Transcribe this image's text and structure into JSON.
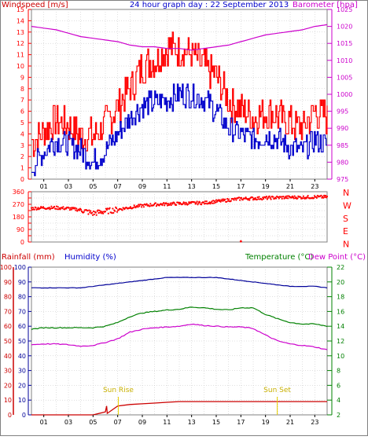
{
  "header": {
    "left": "Windspeed [m/s]",
    "center": "24 hour graph day : 22 September 2013",
    "right": "Barometer [hpa]"
  },
  "bottom_header": {
    "rainfall": "Rainfall (mm)",
    "humidity": "Humidity (%)",
    "temperature": "Temperature (°C)",
    "dewpoint": "Dew Point (°C)"
  },
  "annotations": {
    "sunrise": "Sun Rise",
    "sunset": "Sun Set"
  },
  "x_ticks": [
    "01",
    "03",
    "05",
    "07",
    "09",
    "11",
    "13",
    "15",
    "17",
    "19",
    "21",
    "23"
  ],
  "compass": [
    "N",
    "W",
    "S",
    "E",
    "N"
  ],
  "colors": {
    "wind": "#ff0000",
    "gust": "#ff0000",
    "avg": "#0000cc",
    "baro": "#cc00cc",
    "temp": "#008000",
    "dew": "#cc00cc",
    "humidity": "#000099",
    "rain": "#cc0000",
    "sun": "#e8d000",
    "grid": "#c0c0c0"
  },
  "chart_data": [
    {
      "type": "line",
      "title": "24 hour graph day : 22 September 2013",
      "ylabel": "Windspeed [m/s]",
      "y2label": "Barometer [hpa]",
      "ylim": [
        0,
        15
      ],
      "y2lim": [
        975,
        1025
      ],
      "x_hours": [
        0,
        1,
        2,
        3,
        4,
        5,
        6,
        7,
        8,
        9,
        10,
        11,
        12,
        13,
        14,
        15,
        16,
        17,
        18,
        19,
        20,
        21,
        22,
        23,
        24
      ],
      "series": [
        {
          "values": [
            3.3,
            4.2,
            5.2,
            4.8,
            3.8,
            3.8,
            4.8,
            6.5,
            8.0,
            10.0,
            10.5,
            11.5,
            11.5,
            11.0,
            10.0,
            9.0,
            7.0,
            6.0,
            5.5,
            6.0,
            5.5,
            5.0,
            4.5,
            6.0,
            5.5
          ]
        },
        {
          "values": [
            1.0,
            2.5,
            3.5,
            3.0,
            2.5,
            1.5,
            2.5,
            4.0,
            5.5,
            6.5,
            6.8,
            7.0,
            7.5,
            7.5,
            7.0,
            6.0,
            4.5,
            4.0,
            3.5,
            3.8,
            3.5,
            2.8,
            2.5,
            3.5,
            3.0
          ]
        },
        {
          "values": [
            1020,
            1019.5,
            1019,
            1018,
            1017,
            1016.5,
            1016,
            1015.5,
            1014.5,
            1014,
            1014,
            1013.5,
            1013.5,
            1013,
            1013.5,
            1014,
            1014.5,
            1015.5,
            1016.5,
            1017.5,
            1018,
            1018.5,
            1019,
            1020,
            1020.5
          ]
        }
      ]
    },
    {
      "type": "scatter",
      "ylim": [
        0,
        360
      ],
      "yticks": [
        0,
        45,
        90,
        135,
        180,
        225,
        270,
        315,
        360
      ],
      "x_hours": [
        0,
        1,
        2,
        3,
        4,
        5,
        6,
        7,
        8,
        9,
        10,
        11,
        12,
        13,
        14,
        15,
        16,
        17,
        18,
        19,
        20,
        21,
        22,
        23,
        24
      ],
      "series": [
        {
          "values": [
            240,
            245,
            245,
            240,
            230,
            205,
            220,
            232,
            248,
            260,
            268,
            272,
            275,
            278,
            280,
            290,
            300,
            310,
            312,
            315,
            318,
            320,
            320,
            322,
            322
          ]
        }
      ]
    },
    {
      "type": "line",
      "ylabel": "Rainfall (mm) / Humidity (%)",
      "y2label": "Temperature (°C) / Dew Point (°C)",
      "ylim": [
        0,
        100
      ],
      "y2lim": [
        2,
        22
      ],
      "x_hours": [
        0,
        1,
        2,
        3,
        4,
        5,
        6,
        7,
        8,
        9,
        10,
        11,
        12,
        13,
        14,
        15,
        16,
        17,
        18,
        19,
        20,
        21,
        22,
        23,
        24
      ],
      "series": [
        {
          "values": [
            86,
            86,
            86,
            86,
            86,
            87,
            88,
            89,
            90,
            91,
            92,
            93,
            93,
            93,
            93,
            93,
            92,
            91,
            90,
            89,
            88,
            87,
            87,
            87,
            86
          ]
        },
        {
          "values": [
            13.6,
            13.8,
            13.8,
            13.8,
            13.8,
            13.8,
            14.0,
            14.5,
            15.3,
            15.8,
            16.0,
            16.2,
            16.3,
            16.6,
            16.5,
            16.3,
            16.2,
            16.5,
            16.5,
            15.6,
            15.0,
            14.5,
            14.3,
            14.3,
            14.0
          ]
        },
        {
          "values": [
            11.5,
            11.6,
            11.6,
            11.5,
            11.3,
            11.4,
            11.8,
            12.3,
            13.2,
            13.6,
            13.8,
            13.9,
            14.0,
            14.3,
            14.1,
            14.0,
            13.9,
            13.9,
            13.7,
            12.8,
            12.0,
            11.6,
            11.4,
            11.2,
            10.8
          ]
        },
        {
          "values": [
            0,
            0,
            0,
            0,
            0,
            0,
            2,
            6,
            7,
            7.5,
            8,
            8.5,
            9,
            9,
            9,
            9,
            9,
            9,
            9,
            9,
            9,
            9,
            9,
            9,
            9
          ]
        }
      ]
    }
  ]
}
